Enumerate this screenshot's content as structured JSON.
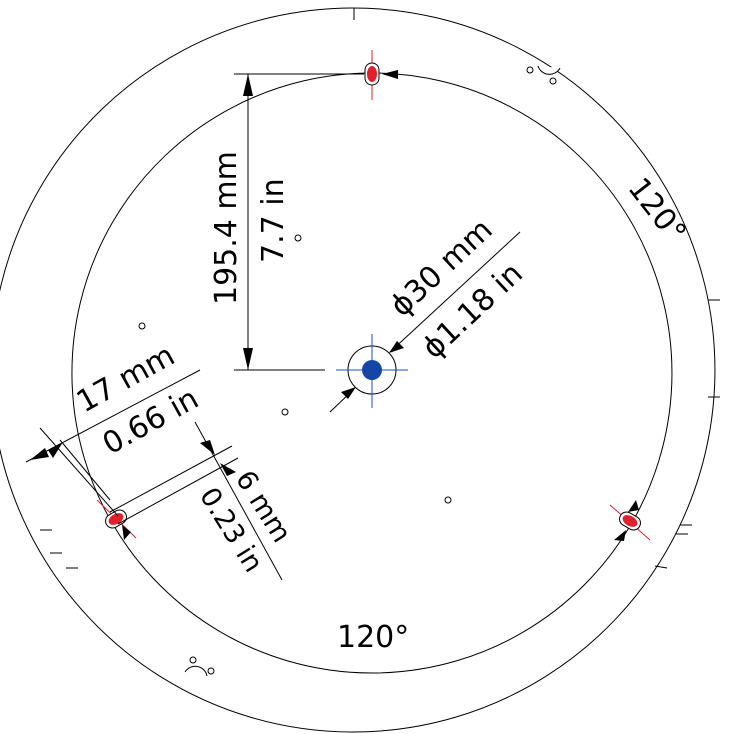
{
  "dimensions": {
    "radius": {
      "mm": "195.4 mm",
      "in": "7.7 in"
    },
    "center_hole": {
      "mm": "ϕ30 mm",
      "in": "ϕ1.18 in"
    },
    "offset": {
      "mm": "17 mm",
      "in": "0.66 in"
    },
    "slot": {
      "mm": "6 mm",
      "in": "0.23 in"
    }
  },
  "angles": {
    "right": "120°",
    "bottom": "120°"
  },
  "colors": {
    "line": "#000000",
    "center_mark": "#1a4fb4",
    "hole_fill": "#1446a8",
    "slot_mark": "#e0202a",
    "slot_axis": "#e0202a"
  }
}
